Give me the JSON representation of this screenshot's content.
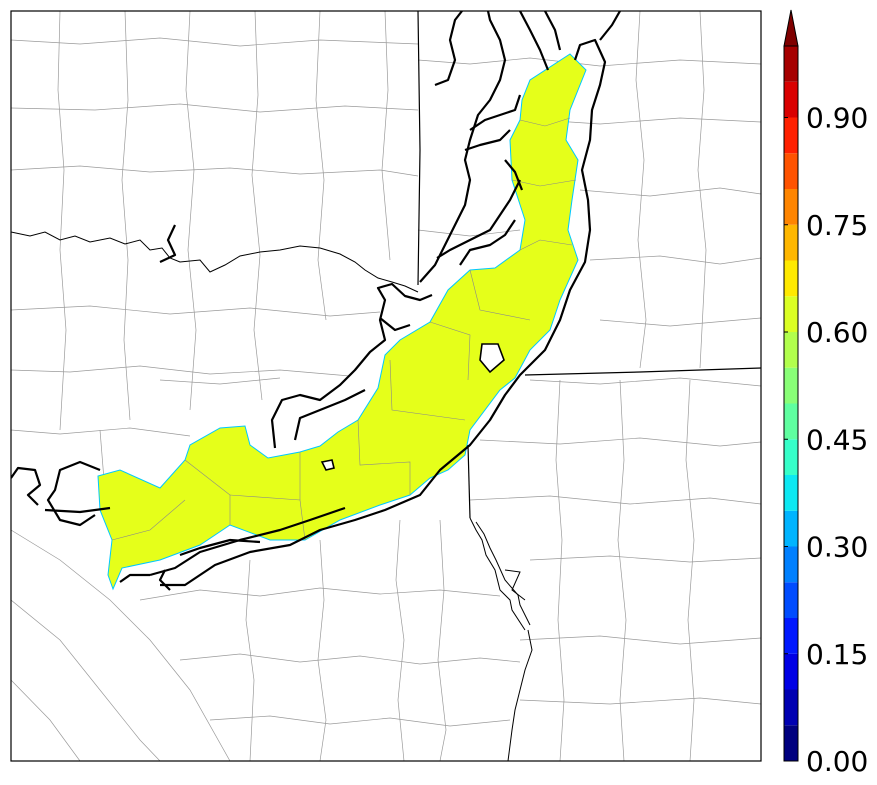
{
  "colorbar": {
    "min": 0.0,
    "max": 1.0,
    "step": 0.05,
    "extend": "max",
    "tick_labels": [
      "0.00",
      "0.15",
      "0.30",
      "0.45",
      "0.60",
      "0.75",
      "0.90"
    ],
    "tick_values": [
      0.0,
      0.15,
      0.3,
      0.45,
      0.6,
      0.75,
      0.9
    ],
    "colors": [
      "#00007f",
      "#0000b2",
      "#0000e5",
      "#0018ff",
      "#004cff",
      "#0080ff",
      "#00b4ff",
      "#0ce8f2",
      "#36ffc9",
      "#5fffa0",
      "#89ff77",
      "#b2ff4d",
      "#dbff24",
      "#ffe900",
      "#ffb700",
      "#ff8500",
      "#ff5300",
      "#ff2000",
      "#d90000",
      "#a60000"
    ],
    "over_color": "#7f0000"
  },
  "map": {
    "shaded_value": 0.6,
    "shade_color": "#e5ff1a",
    "boundary_color": "#000000",
    "county_line_color": "#9a9a9a",
    "state_line_color": "#000000"
  }
}
